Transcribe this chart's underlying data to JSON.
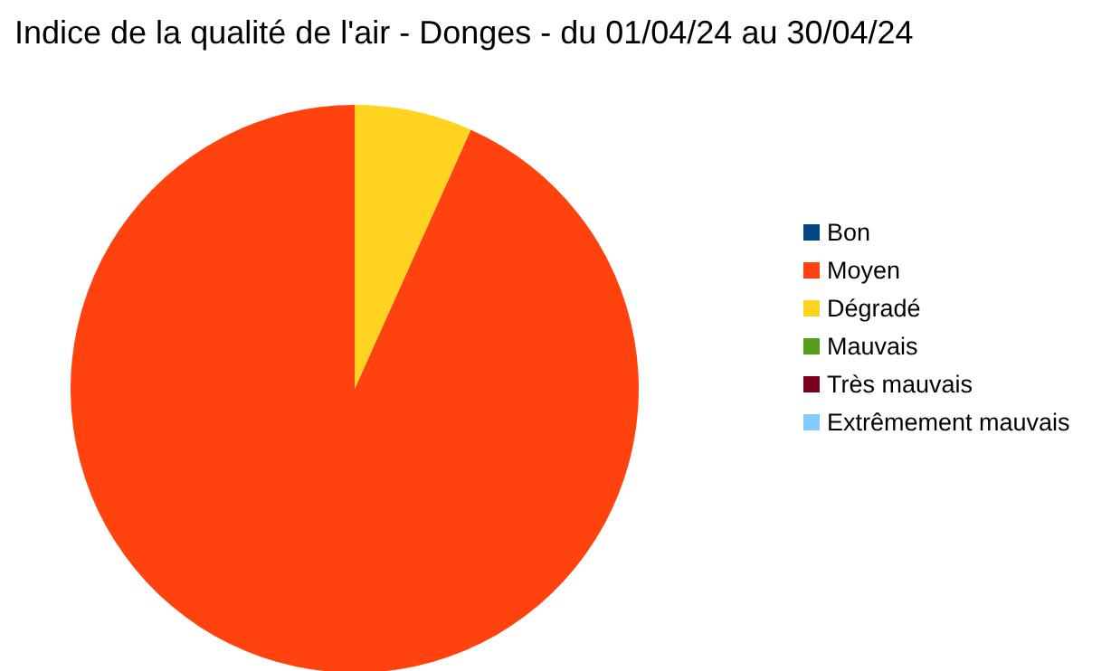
{
  "chart_data": {
    "type": "pie",
    "title": "Indice de la qualité de l'air - Donges - du 01/04/24 au 30/04/24",
    "categories": [
      "Bon",
      "Moyen",
      "Dégradé",
      "Mauvais",
      "Très mauvais",
      "Extrêmement mauvais"
    ],
    "values": [
      0,
      93.3,
      6.7,
      0,
      0,
      0
    ],
    "colors": [
      "#004586",
      "#ff420e",
      "#ffd320",
      "#579d1c",
      "#7e0021",
      "#83caff"
    ],
    "legend": "right"
  }
}
